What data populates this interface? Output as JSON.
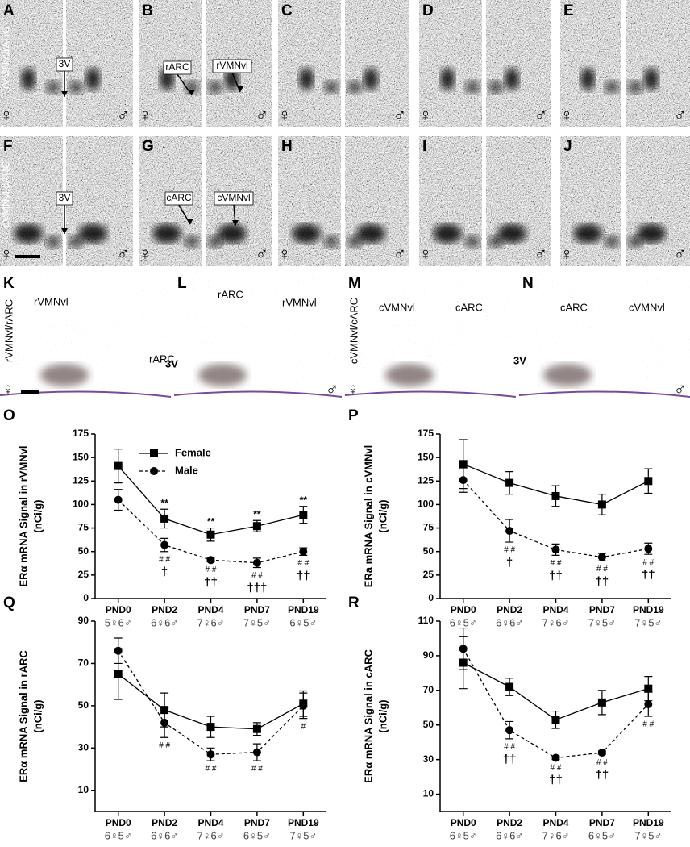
{
  "figure": {
    "rows": [
      {
        "label": "rVMNvl/rARC",
        "panels": [
          "A",
          "B",
          "C",
          "D",
          "E"
        ]
      },
      {
        "label": "cVMNvl/cARC",
        "panels": [
          "F",
          "G",
          "H",
          "I",
          "J"
        ]
      }
    ],
    "stained": [
      {
        "label": "rVMNvl/rARC",
        "panels": [
          "K",
          "L"
        ]
      },
      {
        "label": "cVMNvl/cARC",
        "panels": [
          "M",
          "N"
        ]
      }
    ],
    "callouts": [
      "3V",
      "rARC",
      "rVMNvl",
      "cARC",
      "cVMNvl"
    ],
    "female_symbol": "♀",
    "male_symbol": "♂"
  },
  "chart_data": [
    {
      "type": "line",
      "title": "O",
      "ylabel": "ERα mRNA Signal in rVMNvl",
      "yunit": "(nCi/g)",
      "categories": [
        "PND0",
        "PND2",
        "PND4",
        "PND7",
        "PND19"
      ],
      "sample_sizes": [
        "5♀6♂",
        "6♀6♂",
        "7♀6♂",
        "7♀5♂",
        "6♀5♂"
      ],
      "ylim": [
        0,
        175
      ],
      "yticks": [
        0,
        25,
        50,
        75,
        100,
        125,
        150,
        175
      ],
      "legend": true,
      "series": [
        {
          "name": "Female",
          "color": "#000000",
          "marker": "square",
          "dashed": false,
          "values": [
            141,
            85,
            68,
            77,
            89
          ],
          "errors": [
            18,
            10,
            7,
            6,
            9
          ]
        },
        {
          "name": "Male",
          "color": "#000000",
          "marker": "circle",
          "dashed": true,
          "values": [
            105,
            57,
            41,
            38,
            50
          ],
          "errors": [
            11,
            7,
            2,
            5,
            4
          ]
        }
      ],
      "annotations_above": [
        null,
        "**",
        "**",
        "**",
        "**"
      ],
      "annotations_hash": [
        null,
        "# #",
        "# #",
        "# #",
        "# #"
      ],
      "annotations_dagger": [
        null,
        "†",
        "††",
        "†††",
        "††"
      ]
    },
    {
      "type": "line",
      "title": "P",
      "ylabel": "ERa mRNA Signal in cVMNvl",
      "yunit": "(nCi/g)",
      "categories": [
        "PND0",
        "PND2",
        "PND4",
        "PND7",
        "PND19"
      ],
      "sample_sizes": [
        "6♀5♂",
        "6♀6♂",
        "7♀6♂",
        "7♀5♂",
        "7♀5♂"
      ],
      "ylim": [
        0,
        175
      ],
      "yticks": [
        0,
        25,
        50,
        75,
        100,
        125,
        150,
        175
      ],
      "legend": false,
      "series": [
        {
          "name": "Female",
          "color": "#000000",
          "marker": "square",
          "dashed": false,
          "values": [
            143,
            123,
            109,
            100,
            125
          ],
          "errors": [
            26,
            12,
            11,
            11,
            13
          ]
        },
        {
          "name": "Male",
          "color": "#000000",
          "marker": "circle",
          "dashed": true,
          "values": [
            126,
            72,
            52,
            44,
            53
          ],
          "errors": [
            13,
            12,
            6,
            4,
            6
          ]
        }
      ],
      "annotations_above": [
        null,
        null,
        null,
        null,
        null
      ],
      "annotations_hash": [
        null,
        "# #",
        "# #",
        "# #",
        "# #"
      ],
      "annotations_dagger": [
        null,
        "†",
        "††",
        "††",
        "††"
      ]
    },
    {
      "type": "line",
      "title": "Q",
      "ylabel": "ERα mRNA Signal in rARC",
      "yunit": "(nCi/g)",
      "categories": [
        "PND0",
        "PND2",
        "PND4",
        "PND7",
        "PND19"
      ],
      "sample_sizes": [
        "6♀5♂",
        "6♀6♂",
        "7♀6♂",
        "6♀5♂",
        "7♀5♂"
      ],
      "ylim": [
        0,
        90
      ],
      "yticks": [
        10,
        30,
        50,
        70,
        90
      ],
      "legend": false,
      "series": [
        {
          "name": "Female",
          "color": "#000000",
          "marker": "square",
          "dashed": false,
          "values": [
            65,
            48,
            40,
            39,
            51
          ],
          "errors": [
            12,
            8,
            5,
            3,
            6
          ]
        },
        {
          "name": "Male",
          "color": "#000000",
          "marker": "circle",
          "dashed": true,
          "values": [
            76,
            42,
            27,
            28,
            50
          ],
          "errors": [
            6,
            7,
            3,
            4,
            6
          ]
        }
      ],
      "annotations_above": [
        null,
        null,
        null,
        null,
        null
      ],
      "annotations_hash": [
        null,
        "# #",
        "# #",
        "# #",
        "#"
      ],
      "annotations_dagger": [
        null,
        null,
        null,
        null,
        null
      ]
    },
    {
      "type": "line",
      "title": "R",
      "ylabel": "ERα mRNA Signal in cARC",
      "yunit": "(nCi/g)",
      "categories": [
        "PND0",
        "PND2",
        "PND4",
        "PND7",
        "PND19"
      ],
      "sample_sizes": [
        "6♀5♂",
        "6♀6♂",
        "7♀6♂",
        "6♀5♂",
        "7♀5♂"
      ],
      "ylim": [
        0,
        110
      ],
      "yticks": [
        10,
        30,
        50,
        70,
        90,
        110
      ],
      "legend": false,
      "series": [
        {
          "name": "Female",
          "color": "#000000",
          "marker": "square",
          "dashed": false,
          "values": [
            86,
            72,
            53,
            63,
            71
          ],
          "errors": [
            15,
            5,
            5,
            7,
            7
          ]
        },
        {
          "name": "Male",
          "color": "#000000",
          "marker": "circle",
          "dashed": true,
          "values": [
            94,
            47,
            31,
            34,
            62
          ],
          "errors": [
            12,
            5,
            1,
            1,
            7
          ]
        }
      ],
      "annotations_above": [
        null,
        null,
        null,
        null,
        null
      ],
      "annotations_hash": [
        null,
        "# #",
        "# #",
        "# #",
        "# #"
      ],
      "annotations_dagger": [
        null,
        "††",
        "††",
        "††",
        null
      ]
    }
  ]
}
